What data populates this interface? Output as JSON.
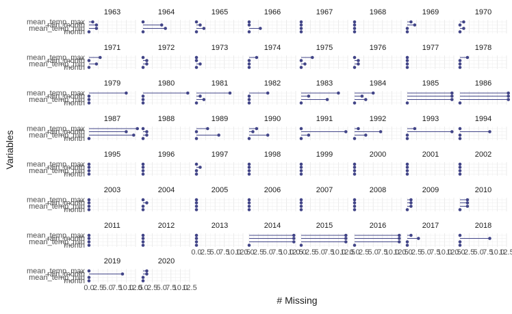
{
  "chart_data": {
    "type": "lollipop-facets",
    "title": "",
    "xlabel": "# Missing",
    "ylabel": "Variables",
    "xlim": [
      0,
      12.5
    ],
    "x_ticks": [
      "0.0",
      "2.5",
      "5.0",
      "7.5",
      "10.0",
      "12.5"
    ],
    "variables": [
      "mean_temp_max",
      "rain_month",
      "mean_temp_min",
      "month"
    ],
    "grid": true,
    "point_color": "#414487",
    "facets": [
      {
        "year": "1963",
        "values": [
          1,
          2,
          2,
          0
        ]
      },
      {
        "year": "1964",
        "values": [
          0,
          5,
          6,
          0
        ]
      },
      {
        "year": "1965",
        "values": [
          0,
          1,
          2,
          0
        ]
      },
      {
        "year": "1966",
        "values": [
          0,
          0,
          3,
          0
        ]
      },
      {
        "year": "1967",
        "values": [
          0,
          0,
          0,
          0
        ]
      },
      {
        "year": "1968",
        "values": [
          0,
          0,
          0,
          0
        ]
      },
      {
        "year": "1969",
        "values": [
          1,
          2,
          0,
          0
        ]
      },
      {
        "year": "1970",
        "values": [
          1,
          0,
          1,
          0
        ]
      },
      {
        "year": "1971",
        "values": [
          3,
          0,
          2,
          0
        ]
      },
      {
        "year": "1972",
        "values": [
          0,
          1,
          1,
          0
        ]
      },
      {
        "year": "1973",
        "values": [
          0,
          0,
          1,
          0
        ]
      },
      {
        "year": "1974",
        "values": [
          2,
          0,
          0,
          0
        ]
      },
      {
        "year": "1975",
        "values": [
          3,
          0,
          1,
          0
        ]
      },
      {
        "year": "1976",
        "values": [
          0,
          1,
          1,
          0
        ]
      },
      {
        "year": "1977",
        "values": [
          0,
          0,
          0,
          0
        ]
      },
      {
        "year": "1978",
        "values": [
          2,
          0,
          0,
          0
        ]
      },
      {
        "year": "1979",
        "values": [
          10,
          0,
          0,
          0
        ]
      },
      {
        "year": "1980",
        "values": [
          12,
          0,
          0,
          0
        ]
      },
      {
        "year": "1981",
        "values": [
          9,
          1,
          2,
          0
        ]
      },
      {
        "year": "1982",
        "values": [
          5,
          0,
          0,
          0
        ]
      },
      {
        "year": "1983",
        "values": [
          10,
          2,
          7,
          0
        ]
      },
      {
        "year": "1984",
        "values": [
          5,
          2,
          3,
          0
        ]
      },
      {
        "year": "1985",
        "values": [
          12,
          12,
          12,
          0
        ]
      },
      {
        "year": "1986",
        "values": [
          13,
          13,
          13,
          0
        ]
      },
      {
        "year": "1987",
        "values": [
          13,
          10,
          12,
          0
        ]
      },
      {
        "year": "1988",
        "values": [
          0,
          1,
          1,
          0
        ]
      },
      {
        "year": "1989",
        "values": [
          3,
          0,
          6,
          0
        ]
      },
      {
        "year": "1990",
        "values": [
          2,
          1,
          5,
          0
        ]
      },
      {
        "year": "1991",
        "values": [
          0,
          12,
          2,
          0
        ]
      },
      {
        "year": "1992",
        "values": [
          1,
          7,
          3,
          0
        ]
      },
      {
        "year": "1993",
        "values": [
          2,
          12,
          0,
          0
        ]
      },
      {
        "year": "1994",
        "values": [
          0,
          8,
          0,
          0
        ]
      },
      {
        "year": "1995",
        "values": [
          0,
          0,
          0,
          0
        ]
      },
      {
        "year": "1996",
        "values": [
          0,
          0,
          0,
          0
        ]
      },
      {
        "year": "1997",
        "values": [
          0,
          1,
          0,
          0
        ]
      },
      {
        "year": "1998",
        "values": [
          0,
          0,
          0,
          0
        ]
      },
      {
        "year": "1999",
        "values": [
          0,
          0,
          0,
          0
        ]
      },
      {
        "year": "2000",
        "values": [
          0,
          0,
          0,
          0
        ]
      },
      {
        "year": "2001",
        "values": [
          0,
          0,
          0,
          0
        ]
      },
      {
        "year": "2002",
        "values": [
          0,
          0,
          0,
          0
        ]
      },
      {
        "year": "2003",
        "values": [
          0,
          0,
          0,
          0
        ]
      },
      {
        "year": "2004",
        "values": [
          0,
          1,
          0,
          0
        ]
      },
      {
        "year": "2005",
        "values": [
          0,
          0,
          0,
          0
        ]
      },
      {
        "year": "2006",
        "values": [
          0,
          0,
          0,
          0
        ]
      },
      {
        "year": "2007",
        "values": [
          0,
          0,
          0,
          0
        ]
      },
      {
        "year": "2008",
        "values": [
          0,
          0,
          0,
          0
        ]
      },
      {
        "year": "2009",
        "values": [
          1,
          1,
          1,
          0
        ]
      },
      {
        "year": "2010",
        "values": [
          2,
          2,
          2,
          0
        ]
      },
      {
        "year": "2011",
        "values": [
          0,
          0,
          0,
          0
        ]
      },
      {
        "year": "2012",
        "values": [
          0,
          0,
          0,
          0
        ]
      },
      {
        "year": "2013",
        "values": [
          0,
          0,
          0,
          0
        ]
      },
      {
        "year": "2014",
        "values": [
          12,
          12,
          12,
          0
        ]
      },
      {
        "year": "2015",
        "values": [
          12,
          12,
          12,
          0
        ]
      },
      {
        "year": "2016",
        "values": [
          12,
          12,
          12,
          0
        ]
      },
      {
        "year": "2017",
        "values": [
          1,
          3,
          0,
          0
        ]
      },
      {
        "year": "2018",
        "values": [
          0,
          8,
          0,
          0
        ]
      },
      {
        "year": "2019",
        "values": [
          0,
          9,
          0,
          0
        ]
      },
      {
        "year": "2020",
        "values": [
          1,
          1,
          0,
          0
        ]
      }
    ]
  }
}
